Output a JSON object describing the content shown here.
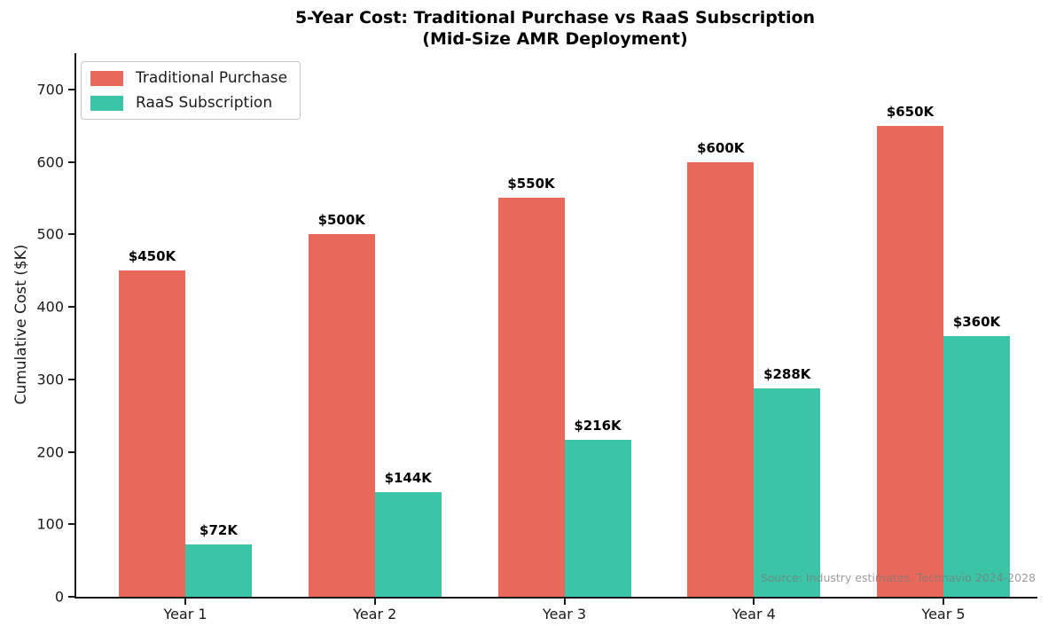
{
  "title": {
    "line1": "5-Year Cost: Traditional Purchase vs RaaS Subscription",
    "line2": "(Mid-Size AMR Deployment)"
  },
  "ylabel": "Cumulative Cost ($K)",
  "source_note": "Source: Industry estimates, Technavio 2024-2028",
  "colors": {
    "traditional": "#E8695B",
    "raas": "#3CC4A6",
    "axis": "#1a1a1a",
    "bar_label": "#000000",
    "source_note": "#7b7b7b"
  },
  "chart_data": {
    "type": "bar",
    "title": "5-Year Cost: Traditional Purchase vs RaaS Subscription (Mid-Size AMR Deployment)",
    "categories": [
      "Year 1",
      "Year 2",
      "Year 3",
      "Year 4",
      "Year 5"
    ],
    "series": [
      {
        "name": "Traditional Purchase",
        "values": [
          450,
          500,
          550,
          600,
          650
        ],
        "labels": [
          "$450K",
          "$500K",
          "$550K",
          "$600K",
          "$650K"
        ],
        "color": "#E8695B"
      },
      {
        "name": "RaaS Subscription",
        "values": [
          72,
          144,
          216,
          288,
          360
        ],
        "labels": [
          "$72K",
          "$144K",
          "$216K",
          "$288K",
          "$360K"
        ],
        "color": "#3CC4A6"
      }
    ],
    "xlabel": "",
    "ylabel": "Cumulative Cost ($K)",
    "ylim": [
      0,
      750
    ],
    "yticks": [
      0,
      100,
      200,
      300,
      400,
      500,
      600,
      700
    ],
    "grid": false,
    "legend_position": "upper left"
  }
}
